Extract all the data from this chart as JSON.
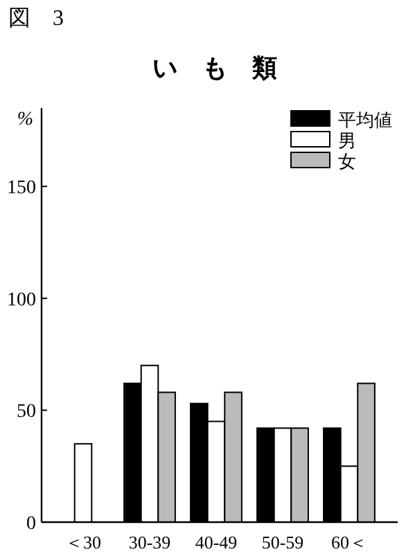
{
  "chart_data": {
    "type": "bar",
    "title": "い　も　類",
    "ylabel": "%",
    "annotations": [
      "図　3"
    ],
    "categories": [
      "＜30",
      "30-39",
      "40-49",
      "50-59",
      "60＜"
    ],
    "series": [
      {
        "name": "平均値",
        "color": "#000000",
        "values": [
          null,
          62,
          53,
          42,
          42
        ]
      },
      {
        "name": "男",
        "color": "#ffffff",
        "values": [
          35,
          70,
          45,
          42,
          25
        ]
      },
      {
        "name": "女",
        "color": "#bbbbbb",
        "values": [
          null,
          58,
          58,
          42,
          62
        ]
      }
    ],
    "ylim": [
      0,
      185
    ],
    "yticks": [
      0,
      50,
      100,
      150
    ],
    "legend": "top right",
    "grid": false
  }
}
